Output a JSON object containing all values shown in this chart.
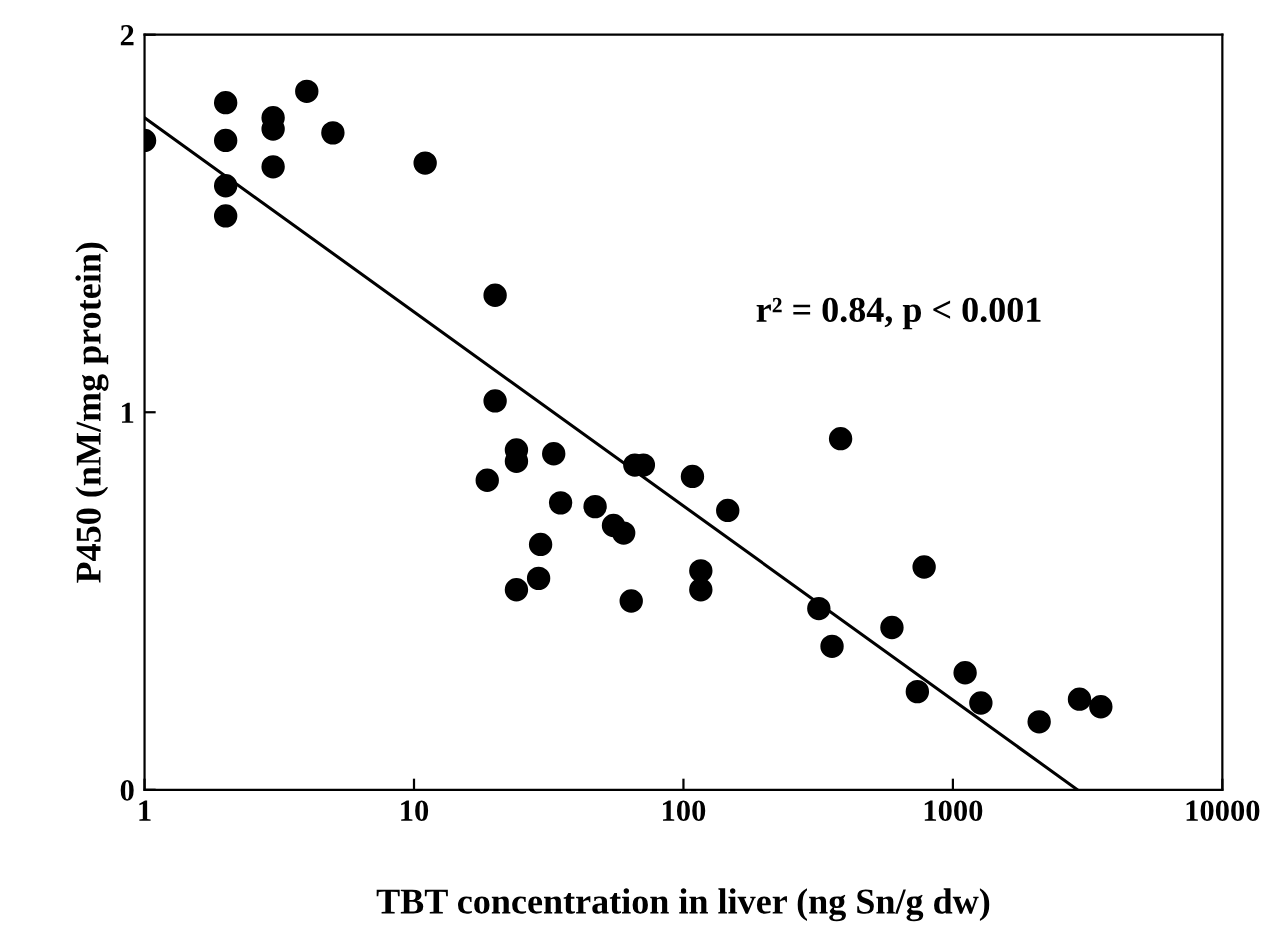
{
  "chart_data": {
    "type": "scatter",
    "xlabel": "TBT concentration in liver (ng Sn/g dw)",
    "ylabel": "P450 (nM/mg protein)",
    "log": "x",
    "xlim": [
      1,
      10000
    ],
    "ylim": [
      0,
      2
    ],
    "xticks": [
      1,
      10,
      100,
      1000,
      10000
    ],
    "yticks": [
      0,
      1,
      2
    ],
    "grid": false,
    "legend": false,
    "marker": "circle",
    "annotations": [
      "r² = 0.84, p < 0.001"
    ],
    "series": [
      {
        "color": "#000000",
        "x": [
          1,
          2,
          2,
          2,
          2,
          3,
          3,
          3,
          4,
          5,
          11,
          20,
          20,
          18.7,
          24,
          24,
          33,
          35,
          24,
          29,
          29.5,
          47,
          55,
          60,
          64,
          66,
          71,
          108,
          116,
          116,
          383,
          146,
          318,
          356,
          594,
          782,
          738,
          1110,
          1270,
          2090,
          2950,
          3540
        ],
        "values": [
          1.72,
          1.82,
          1.72,
          1.6,
          1.52,
          1.78,
          1.75,
          1.65,
          1.85,
          1.74,
          1.66,
          1.31,
          1.03,
          0.82,
          0.9,
          0.87,
          0.89,
          0.76,
          0.53,
          0.56,
          0.65,
          0.75,
          0.7,
          0.68,
          0.5,
          0.86,
          0.86,
          0.83,
          0.58,
          0.53,
          0.93,
          0.74,
          0.48,
          0.38,
          0.43,
          0.59,
          0.26,
          0.31,
          0.23,
          0.18,
          0.24,
          0.22
        ]
      },
      {
        "type": "line",
        "color": "#000000",
        "x": [
          1,
          2900
        ],
        "values": [
          1.78,
          0
        ],
        "marker": "none",
        "line_style": "solid"
      }
    ]
  }
}
